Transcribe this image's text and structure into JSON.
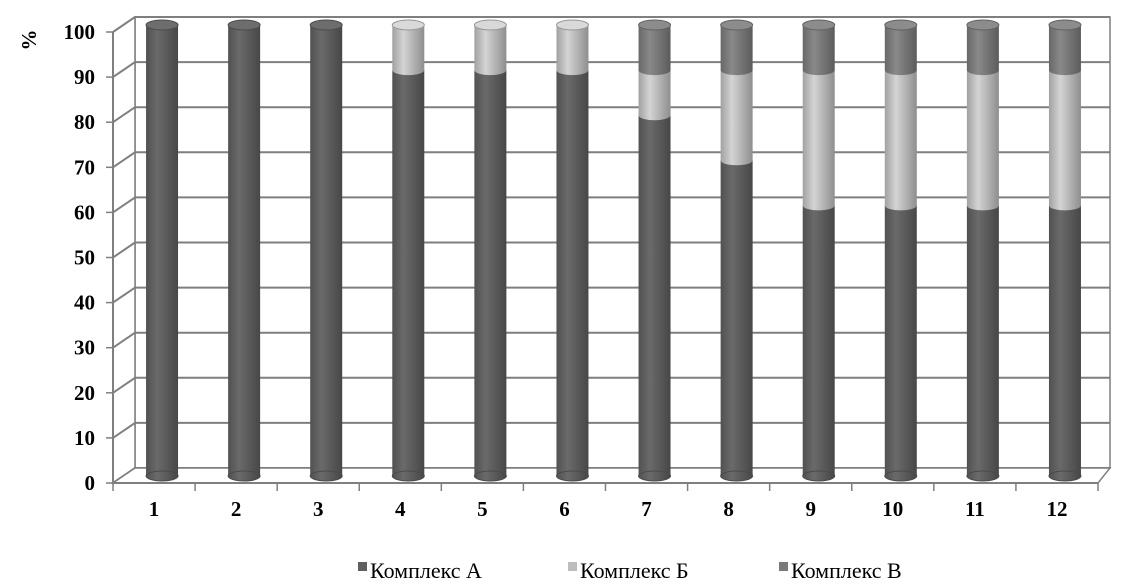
{
  "chart_data": {
    "type": "bar",
    "stacked": true,
    "three_d": true,
    "title": "",
    "xlabel": "",
    "ylabel": "%",
    "ylim": [
      0,
      100
    ],
    "yticks": [
      0,
      10,
      20,
      30,
      40,
      50,
      60,
      70,
      80,
      90,
      100
    ],
    "grid": true,
    "legend_position": "bottom",
    "categories": [
      "1",
      "2",
      "3",
      "4",
      "5",
      "6",
      "7",
      "8",
      "9",
      "10",
      "11",
      "12"
    ],
    "series": [
      {
        "name": "Комплекс А",
        "color": "#5f5f5f",
        "values": [
          100,
          100,
          100,
          90,
          90,
          90,
          80,
          70,
          60,
          60,
          60,
          60
        ]
      },
      {
        "name": "Комплекс Б",
        "color": "#bdbdbd",
        "values": [
          0,
          0,
          0,
          10,
          10,
          10,
          10,
          20,
          30,
          30,
          30,
          30
        ]
      },
      {
        "name": "Комплекс В",
        "color": "#7a7a7a",
        "values": [
          0,
          0,
          0,
          0,
          0,
          0,
          10,
          10,
          10,
          10,
          10,
          10
        ]
      }
    ]
  }
}
